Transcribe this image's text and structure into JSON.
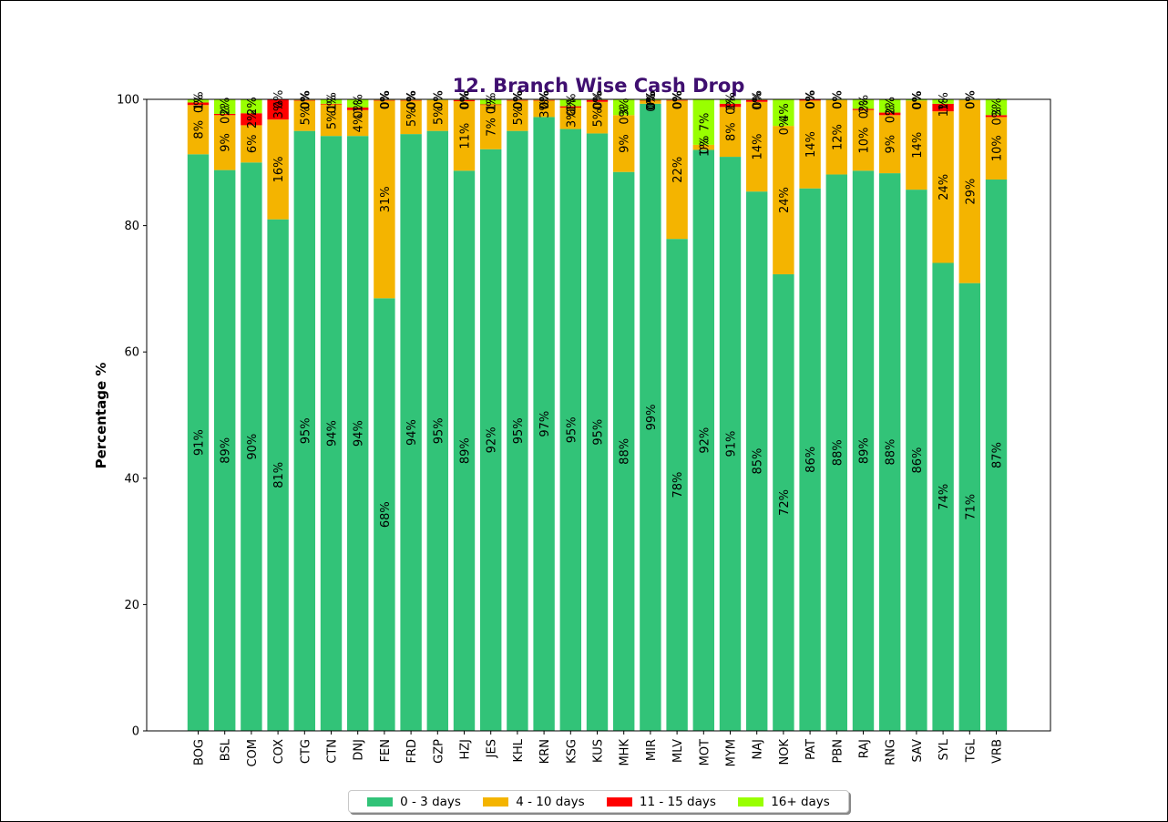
{
  "chart_data": {
    "type": "bar",
    "stacked": true,
    "title": "12. Branch Wise Cash Drop",
    "xlabel": "",
    "ylabel": "Percentage %",
    "ylim": [
      0,
      100
    ],
    "yticks": [
      0,
      20,
      40,
      60,
      80,
      100
    ],
    "grid": false,
    "legend_position": "bottom-center",
    "categories": [
      "BOG",
      "BSL",
      "COM",
      "COX",
      "CTG",
      "CTN",
      "DNJ",
      "FEN",
      "FRD",
      "GZP",
      "HZJ",
      "JES",
      "KHL",
      "KRN",
      "KSG",
      "KUS",
      "MHK",
      "MIR",
      "MLV",
      "MOT",
      "MYM",
      "NAJ",
      "NOK",
      "PAT",
      "PBN",
      "RAJ",
      "RNG",
      "SAV",
      "SYL",
      "TGL",
      "VRB"
    ],
    "series": [
      {
        "name": "0 - 3 days",
        "color": "#32c378",
        "values": [
          91.3,
          88.8,
          90.0,
          81.0,
          95.0,
          94.2,
          94.2,
          68.5,
          94.5,
          95.0,
          88.7,
          92.1,
          95.0,
          97.2,
          95.3,
          94.6,
          88.5,
          99.3,
          77.9,
          92.0,
          90.9,
          85.4,
          72.3,
          85.9,
          88.1,
          88.7,
          88.3,
          85.7,
          74.1,
          70.9,
          87.3
        ],
        "labels": [
          "91%",
          "89%",
          "90%",
          "81%",
          "95%",
          "94%",
          "94%",
          "68%",
          "94%",
          "95%",
          "89%",
          "92%",
          "95%",
          "97%",
          "95%",
          "95%",
          "88%",
          "99%",
          "78%",
          "92%",
          "91%",
          "85%",
          "72%",
          "86%",
          "88%",
          "89%",
          "88%",
          "86%",
          "74%",
          "71%",
          "87%"
        ]
      },
      {
        "name": "4 - 10 days",
        "color": "#f4b400",
        "values": [
          7.8,
          8.7,
          5.9,
          15.8,
          4.8,
          5.0,
          4.1,
          31.3,
          5.3,
          4.9,
          11.0,
          7.0,
          4.8,
          2.6,
          3.4,
          5.0,
          9.0,
          0.4,
          21.9,
          0.8,
          7.9,
          14.2,
          23.5,
          13.9,
          11.8,
          9.6,
          9.2,
          14.1,
          24.0,
          29.0,
          9.9
        ],
        "labels": [
          "8%",
          "9%",
          "6%",
          "16%",
          "5%",
          "5%",
          "4%",
          "31%",
          "5%",
          "5%",
          "11%",
          "7%",
          "5%",
          "3%",
          "3%",
          "5%",
          "9%",
          "0%",
          "22%",
          "1%",
          "8%",
          "14%",
          "24%",
          "14%",
          "12%",
          "10%",
          "9%",
          "14%",
          "24%",
          "29%",
          "10%"
        ]
      },
      {
        "name": "11 - 15 days",
        "color": "#ff0000",
        "values": [
          0.4,
          0.2,
          1.9,
          3.2,
          0.1,
          0.1,
          0.4,
          0.1,
          0.1,
          0.0,
          0.2,
          0.1,
          0.1,
          0.1,
          0.2,
          0.3,
          0.0,
          0.1,
          0.1,
          0.0,
          0.5,
          0.3,
          0.0,
          0.2,
          0.0,
          0.2,
          0.4,
          0.0,
          1.2,
          0.0,
          0.3
        ],
        "labels": [
          "0%",
          "0%",
          "2%",
          "3%",
          "0%",
          "0%",
          "0%",
          "0%",
          "0%",
          "0%",
          "0%",
          "0%",
          "0%",
          "0%",
          "0%",
          "0%",
          "0%",
          "0%",
          "0%",
          "0%",
          "0%",
          "0%",
          "0%",
          "0%",
          "0%",
          "0%",
          "0%",
          "0%",
          "1%",
          "0%",
          "0%"
        ]
      },
      {
        "name": "16+ days",
        "color": "#99ff00",
        "values": [
          0.5,
          2.3,
          2.2,
          0.0,
          0.1,
          0.7,
          1.3,
          0.1,
          0.1,
          0.1,
          0.1,
          0.8,
          0.1,
          0.1,
          1.1,
          0.1,
          2.5,
          0.2,
          0.1,
          7.2,
          0.7,
          0.1,
          4.2,
          0.0,
          0.1,
          1.5,
          2.1,
          0.2,
          0.7,
          0.1,
          2.5
        ],
        "labels": [
          "1%",
          "2%",
          "2%",
          "0%",
          "0%",
          "1%",
          "1%",
          "0%",
          "0%",
          "0%",
          "0%",
          "1%",
          "0%",
          "0%",
          "1%",
          "0%",
          "3%",
          "0%",
          "0%",
          "7%",
          "1%",
          "0%",
          "4%",
          "0%",
          "0%",
          "2%",
          "2%",
          "0%",
          "1%",
          "0%",
          "3%"
        ]
      }
    ]
  }
}
